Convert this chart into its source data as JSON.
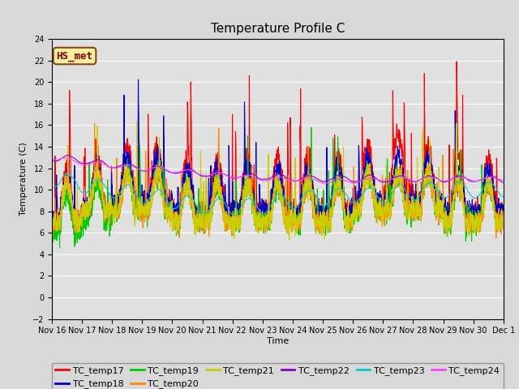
{
  "title": "Temperature Profile C",
  "xlabel": "Time",
  "ylabel": "Temperature (C)",
  "ylim": [
    -2,
    24
  ],
  "xlim": [
    0,
    15
  ],
  "annotation_text": "HS_met",
  "x_tick_labels": [
    "Nov 16",
    "Nov 17",
    "Nov 18",
    "Nov 19",
    "Nov 20",
    "Nov 21",
    "Nov 22",
    "Nov 23",
    "Nov 24",
    "Nov 25",
    "Nov 26",
    "Nov 27",
    "Nov 28",
    "Nov 29",
    "Nov 30",
    "Dec 1"
  ],
  "series_names": [
    "TC_temp17",
    "TC_temp18",
    "TC_temp19",
    "TC_temp20",
    "TC_temp21",
    "TC_temp22",
    "TC_temp23",
    "TC_temp24"
  ],
  "series_colors": [
    "#ff0000",
    "#0000cc",
    "#00cc00",
    "#ff8800",
    "#cccc00",
    "#8800cc",
    "#00cccc",
    "#ff44ff"
  ],
  "background_color": "#d8d8d8",
  "title_fontsize": 11,
  "axis_fontsize": 8,
  "legend_fontsize": 8,
  "tick_fontsize": 7
}
